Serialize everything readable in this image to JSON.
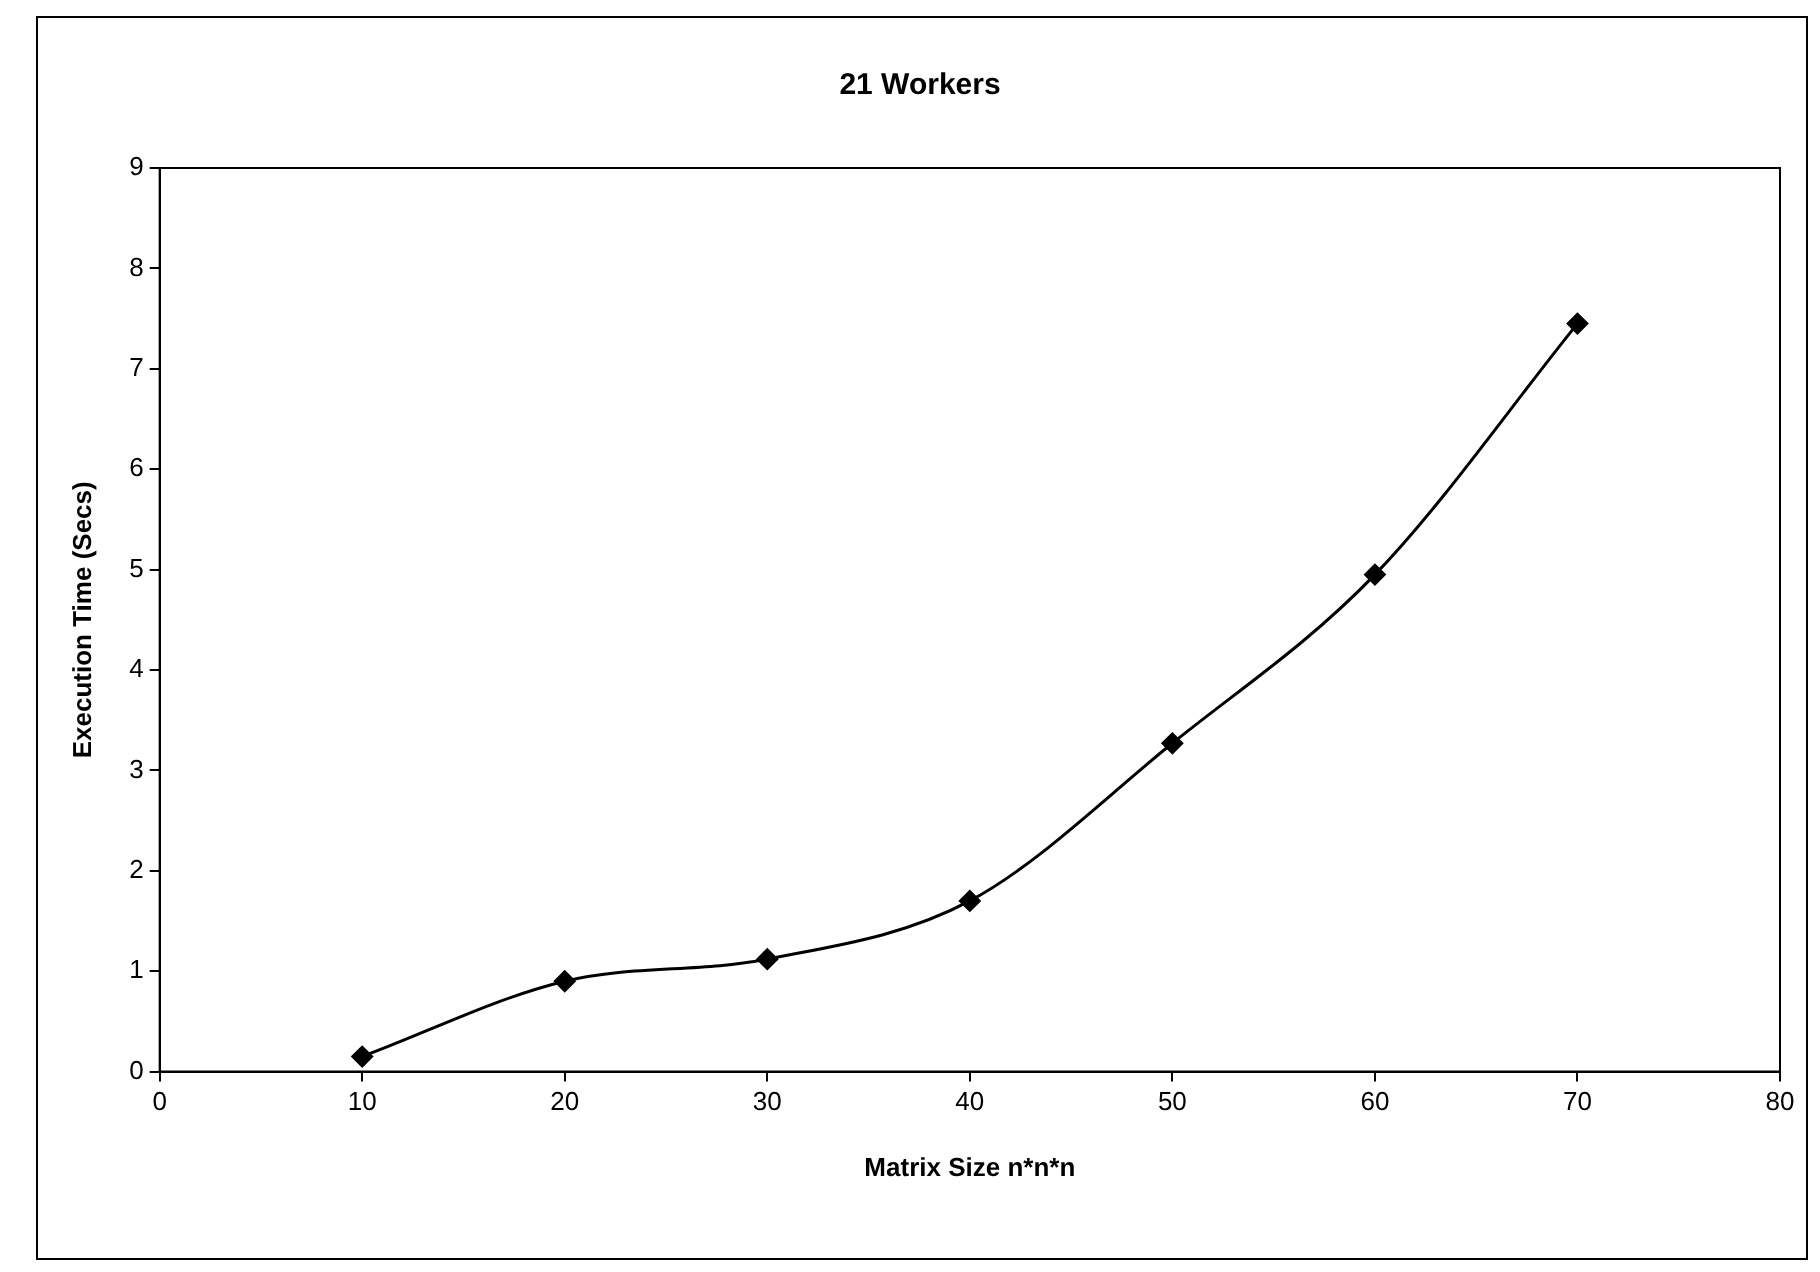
{
  "chart_data": {
    "type": "line",
    "title": "21 Workers",
    "xlabel": "Matrix Size n*n*n",
    "ylabel": "Execution Time (Secs)",
    "x": [
      10,
      20,
      30,
      40,
      50,
      60,
      70
    ],
    "series": [
      {
        "color": "#000000",
        "values": [
          0.15,
          0.9,
          1.12,
          1.7,
          3.27,
          4.95,
          7.45
        ]
      }
    ],
    "xlim": [
      0,
      80
    ],
    "xticks": [
      0,
      10,
      20,
      30,
      40,
      50,
      60,
      70,
      80
    ],
    "ylim": [
      0,
      9
    ],
    "yticks": [
      0,
      1,
      2,
      3,
      4,
      5,
      6,
      7,
      8,
      9
    ],
    "grid": false,
    "legend": false,
    "marker": "diamond",
    "line_style": "solid"
  }
}
